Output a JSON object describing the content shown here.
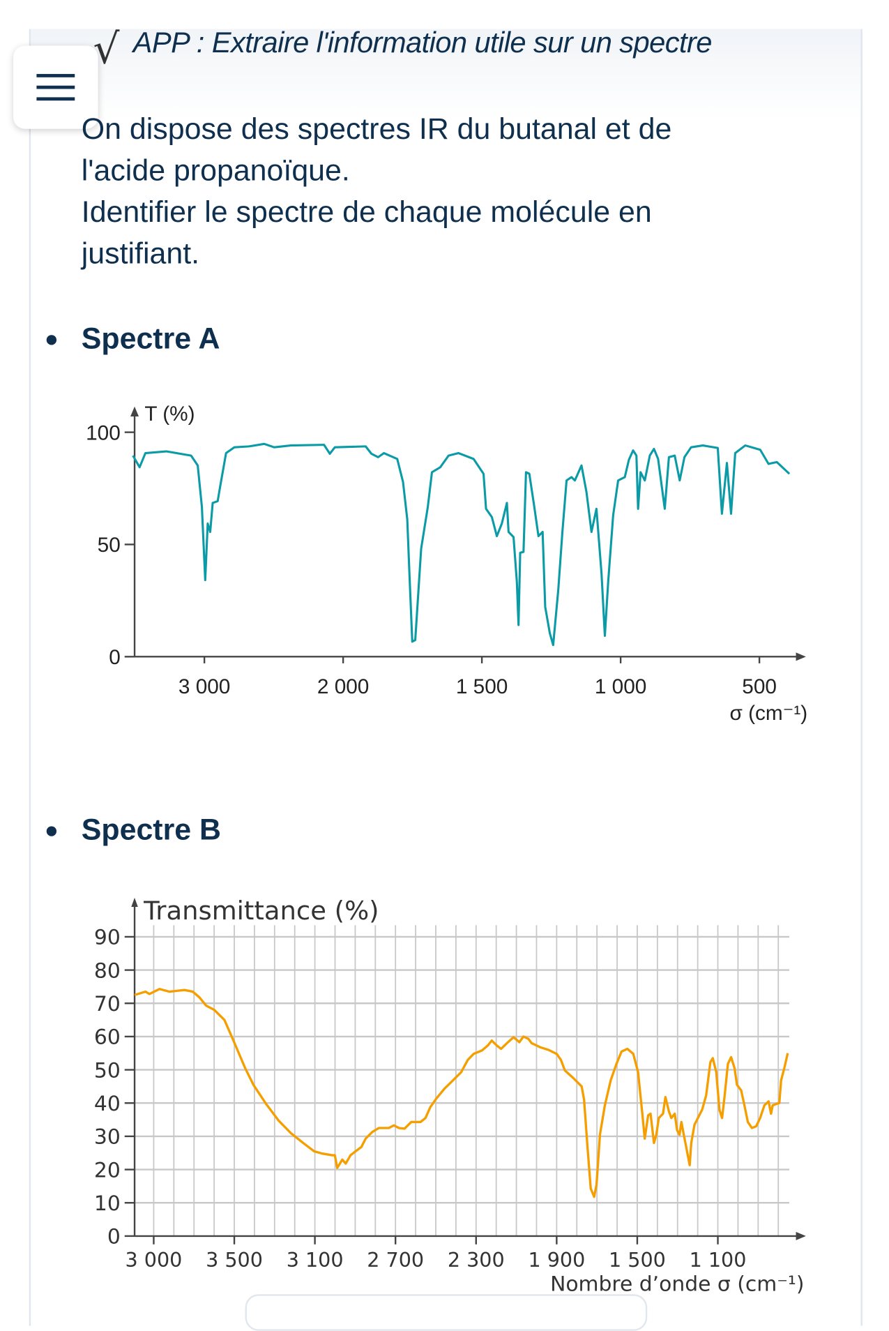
{
  "header": {
    "check_icon": "check-icon",
    "title": "APP : Extraire l'information utile sur un spectre",
    "menu_icon": "hamburger-menu-icon"
  },
  "statement": {
    "lines": [
      "On dispose des spectres IR du butanal et de",
      "l'acide propanoïque.",
      "Identifier le spectre de chaque molécule en",
      "justifiant."
    ]
  },
  "sections": [
    {
      "label": "Spectre A"
    },
    {
      "label": "Spectre B"
    }
  ],
  "colors": {
    "text": "#0f2f4e",
    "spectrum_a": "#0a9ba6",
    "spectrum_b": "#f59e00",
    "grid": "#c8c8c8",
    "axis": "#444444"
  },
  "chart_data": [
    {
      "type": "line",
      "title": "",
      "ylabel": "T (%)",
      "xlabel": "σ (cm⁻¹)",
      "ylim": [
        0,
        100
      ],
      "xlim": [
        3515,
        390
      ],
      "x_scale": "piecewise: 1000 cm⁻¹ per division above 2000, 500 cm⁻¹ per division below 2000",
      "x_ticks": [
        {
          "value": 3000,
          "label": "3 000"
        },
        {
          "value": 2000,
          "label": "2 000"
        },
        {
          "value": 1500,
          "label": "1 500"
        },
        {
          "value": 1000,
          "label": "1 000"
        },
        {
          "value": 500,
          "label": "500"
        }
      ],
      "y_ticks": [
        {
          "value": 0,
          "label": "0"
        },
        {
          "value": 50,
          "label": "50"
        },
        {
          "value": 100,
          "label": "100"
        }
      ],
      "grid": false,
      "series": [
        {
          "color": "#0a9ba6",
          "points": [
            [
              3515,
              89.6
            ],
            [
              3467,
              84.4
            ],
            [
              3425,
              90.7
            ],
            [
              3275,
              91.5
            ],
            [
              3096,
              89.6
            ],
            [
              3048,
              85.2
            ],
            [
              3018,
              66.7
            ],
            [
              2994,
              34.1
            ],
            [
              2976,
              59.3
            ],
            [
              2958,
              55.6
            ],
            [
              2940,
              68.5
            ],
            [
              2904,
              69.3
            ],
            [
              2886,
              75.9
            ],
            [
              2844,
              90.7
            ],
            [
              2784,
              93.3
            ],
            [
              2677,
              93.7
            ],
            [
              2569,
              94.8
            ],
            [
              2497,
              93.3
            ],
            [
              2377,
              94.1
            ],
            [
              2138,
              94.4
            ],
            [
              2096,
              90.4
            ],
            [
              2060,
              93.3
            ],
            [
              1919,
              93.7
            ],
            [
              1898,
              90.4
            ],
            [
              1874,
              88.9
            ],
            [
              1853,
              90.7
            ],
            [
              1805,
              88.1
            ],
            [
              1784,
              77.8
            ],
            [
              1769,
              61.1
            ],
            [
              1760,
              33.3
            ],
            [
              1751,
              6.7
            ],
            [
              1740,
              7.4
            ],
            [
              1719,
              48.1
            ],
            [
              1695,
              66.7
            ],
            [
              1680,
              82.2
            ],
            [
              1650,
              84.4
            ],
            [
              1620,
              89.6
            ],
            [
              1584,
              90.7
            ],
            [
              1530,
              88.1
            ],
            [
              1494,
              81.5
            ],
            [
              1485,
              65.9
            ],
            [
              1464,
              62.2
            ],
            [
              1446,
              53.7
            ],
            [
              1428,
              59.3
            ],
            [
              1410,
              68.5
            ],
            [
              1404,
              55.6
            ],
            [
              1386,
              53.3
            ],
            [
              1374,
              33.3
            ],
            [
              1368,
              14.1
            ],
            [
              1362,
              46.3
            ],
            [
              1350,
              46.7
            ],
            [
              1341,
              82.2
            ],
            [
              1329,
              81.5
            ],
            [
              1311,
              66.7
            ],
            [
              1296,
              53.7
            ],
            [
              1281,
              55.6
            ],
            [
              1272,
              22.2
            ],
            [
              1255,
              10.4
            ],
            [
              1243,
              5.2
            ],
            [
              1225,
              29.6
            ],
            [
              1210,
              55.6
            ],
            [
              1195,
              78.5
            ],
            [
              1177,
              80.0
            ],
            [
              1165,
              78.5
            ],
            [
              1141,
              85.2
            ],
            [
              1123,
              73.3
            ],
            [
              1105,
              55.6
            ],
            [
              1087,
              65.9
            ],
            [
              1069,
              37.0
            ],
            [
              1057,
              9.3
            ],
            [
              1045,
              33.3
            ],
            [
              1027,
              63.0
            ],
            [
              1009,
              78.5
            ],
            [
              985,
              80.0
            ],
            [
              970,
              87.8
            ],
            [
              955,
              91.9
            ],
            [
              943,
              89.6
            ],
            [
              937,
              65.9
            ],
            [
              928,
              82.2
            ],
            [
              913,
              78.5
            ],
            [
              895,
              89.6
            ],
            [
              880,
              92.6
            ],
            [
              865,
              88.1
            ],
            [
              841,
              65.9
            ],
            [
              826,
              88.9
            ],
            [
              805,
              89.6
            ],
            [
              787,
              78.5
            ],
            [
              770,
              88.9
            ],
            [
              746,
              93.3
            ],
            [
              704,
              94.1
            ],
            [
              650,
              93.0
            ],
            [
              635,
              63.7
            ],
            [
              617,
              86.3
            ],
            [
              602,
              63.7
            ],
            [
              587,
              90.7
            ],
            [
              551,
              94.1
            ],
            [
              497,
              92.2
            ],
            [
              467,
              85.9
            ],
            [
              437,
              86.7
            ],
            [
              392,
              81.5
            ]
          ]
        }
      ]
    },
    {
      "type": "line",
      "title": "",
      "ylabel": "Transmittance (%)",
      "xlabel": "Nombre d’onde σ (cm⁻¹)",
      "ylim": [
        0,
        90
      ],
      "xlim": [
        3995,
        753
      ],
      "x_tick_labels": [
        "3 000",
        "3 500",
        "3 100",
        "2 700",
        "2 300",
        "1 900",
        "1 500",
        "1 100"
      ],
      "y_ticks": [
        {
          "value": 0,
          "label": "0"
        },
        {
          "value": 10,
          "label": "10"
        },
        {
          "value": 20,
          "label": "20"
        },
        {
          "value": 30,
          "label": "30"
        },
        {
          "value": 40,
          "label": "40"
        },
        {
          "value": 50,
          "label": "50"
        },
        {
          "value": 60,
          "label": "60"
        },
        {
          "value": 70,
          "label": "70"
        },
        {
          "value": 80,
          "label": "80"
        },
        {
          "value": 90,
          "label": "90"
        }
      ],
      "grid": true,
      "series": [
        {
          "color": "#f59e00",
          "points": [
            [
              3995,
              72.5
            ],
            [
              3941,
              73.5
            ],
            [
              3921,
              72.8
            ],
            [
              3871,
              74.3
            ],
            [
              3822,
              73.5
            ],
            [
              3747,
              74.0
            ],
            [
              3706,
              73.5
            ],
            [
              3673,
              71.8
            ],
            [
              3640,
              69.3
            ],
            [
              3599,
              68.0
            ],
            [
              3549,
              65.0
            ],
            [
              3508,
              59.3
            ],
            [
              3446,
              50.5
            ],
            [
              3405,
              45.5
            ],
            [
              3343,
              39.8
            ],
            [
              3281,
              34.8
            ],
            [
              3220,
              31.0
            ],
            [
              3158,
              28.0
            ],
            [
              3104,
              25.5
            ],
            [
              3063,
              24.8
            ],
            [
              3013,
              24.3
            ],
            [
              3001,
              24.3
            ],
            [
              2989,
              20.5
            ],
            [
              2976,
              21.8
            ],
            [
              2964,
              23.0
            ],
            [
              2947,
              21.8
            ],
            [
              2923,
              24.3
            ],
            [
              2898,
              25.5
            ],
            [
              2869,
              26.8
            ],
            [
              2848,
              29.3
            ],
            [
              2815,
              31.3
            ],
            [
              2782,
              32.5
            ],
            [
              2733,
              32.5
            ],
            [
              2708,
              33.3
            ],
            [
              2683,
              32.5
            ],
            [
              2655,
              32.3
            ],
            [
              2622,
              34.3
            ],
            [
              2576,
              34.3
            ],
            [
              2551,
              35.5
            ],
            [
              2527,
              38.8
            ],
            [
              2498,
              41.3
            ],
            [
              2457,
              44.3
            ],
            [
              2415,
              46.8
            ],
            [
              2374,
              49.3
            ],
            [
              2341,
              53.0
            ],
            [
              2312,
              54.8
            ],
            [
              2271,
              55.8
            ],
            [
              2242,
              57.3
            ],
            [
              2222,
              58.8
            ],
            [
              2197,
              57.3
            ],
            [
              2176,
              56.3
            ],
            [
              2147,
              58.0
            ],
            [
              2114,
              59.8
            ],
            [
              2098,
              59.0
            ],
            [
              2085,
              58.3
            ],
            [
              2065,
              60.0
            ],
            [
              2040,
              59.3
            ],
            [
              2024,
              58.0
            ],
            [
              1982,
              56.8
            ],
            [
              1941,
              56.0
            ],
            [
              1900,
              54.8
            ],
            [
              1879,
              53.0
            ],
            [
              1859,
              49.8
            ],
            [
              1817,
              47.5
            ],
            [
              1776,
              45.0
            ],
            [
              1764,
              41.0
            ],
            [
              1747,
              26.8
            ],
            [
              1731,
              14.3
            ],
            [
              1714,
              11.8
            ],
            [
              1702,
              15.5
            ],
            [
              1685,
              30.5
            ],
            [
              1661,
              39.3
            ],
            [
              1632,
              46.8
            ],
            [
              1603,
              51.8
            ],
            [
              1578,
              55.5
            ],
            [
              1549,
              56.3
            ],
            [
              1520,
              54.8
            ],
            [
              1496,
              49.3
            ],
            [
              1475,
              36.8
            ],
            [
              1463,
              29.3
            ],
            [
              1446,
              36.3
            ],
            [
              1434,
              36.8
            ],
            [
              1417,
              28.0
            ],
            [
              1405,
              30.5
            ],
            [
              1393,
              35.5
            ],
            [
              1372,
              36.8
            ],
            [
              1360,
              41.8
            ],
            [
              1343,
              37.5
            ],
            [
              1331,
              35.5
            ],
            [
              1314,
              36.8
            ],
            [
              1302,
              31.8
            ],
            [
              1290,
              30.5
            ],
            [
              1281,
              34.3
            ],
            [
              1273,
              31.8
            ],
            [
              1257,
              26.8
            ],
            [
              1240,
              21.3
            ],
            [
              1232,
              28.0
            ],
            [
              1216,
              33.5
            ],
            [
              1178,
              38.0
            ],
            [
              1158,
              42.3
            ],
            [
              1137,
              52.3
            ],
            [
              1125,
              53.5
            ],
            [
              1108,
              49.3
            ],
            [
              1092,
              38.0
            ],
            [
              1079,
              35.5
            ],
            [
              1067,
              41.8
            ],
            [
              1050,
              51.8
            ],
            [
              1034,
              53.8
            ],
            [
              1017,
              50.5
            ],
            [
              1005,
              45.5
            ],
            [
              984,
              43.8
            ],
            [
              968,
              39.3
            ],
            [
              951,
              34.3
            ],
            [
              931,
              32.5
            ],
            [
              910,
              33.0
            ],
            [
              890,
              35.5
            ],
            [
              869,
              39.3
            ],
            [
              848,
              40.5
            ],
            [
              836,
              36.8
            ],
            [
              828,
              39.3
            ],
            [
              807,
              39.8
            ],
            [
              795,
              40.0
            ],
            [
              786,
              46.8
            ],
            [
              770,
              50.5
            ],
            [
              753,
              55.0
            ]
          ]
        }
      ]
    }
  ]
}
